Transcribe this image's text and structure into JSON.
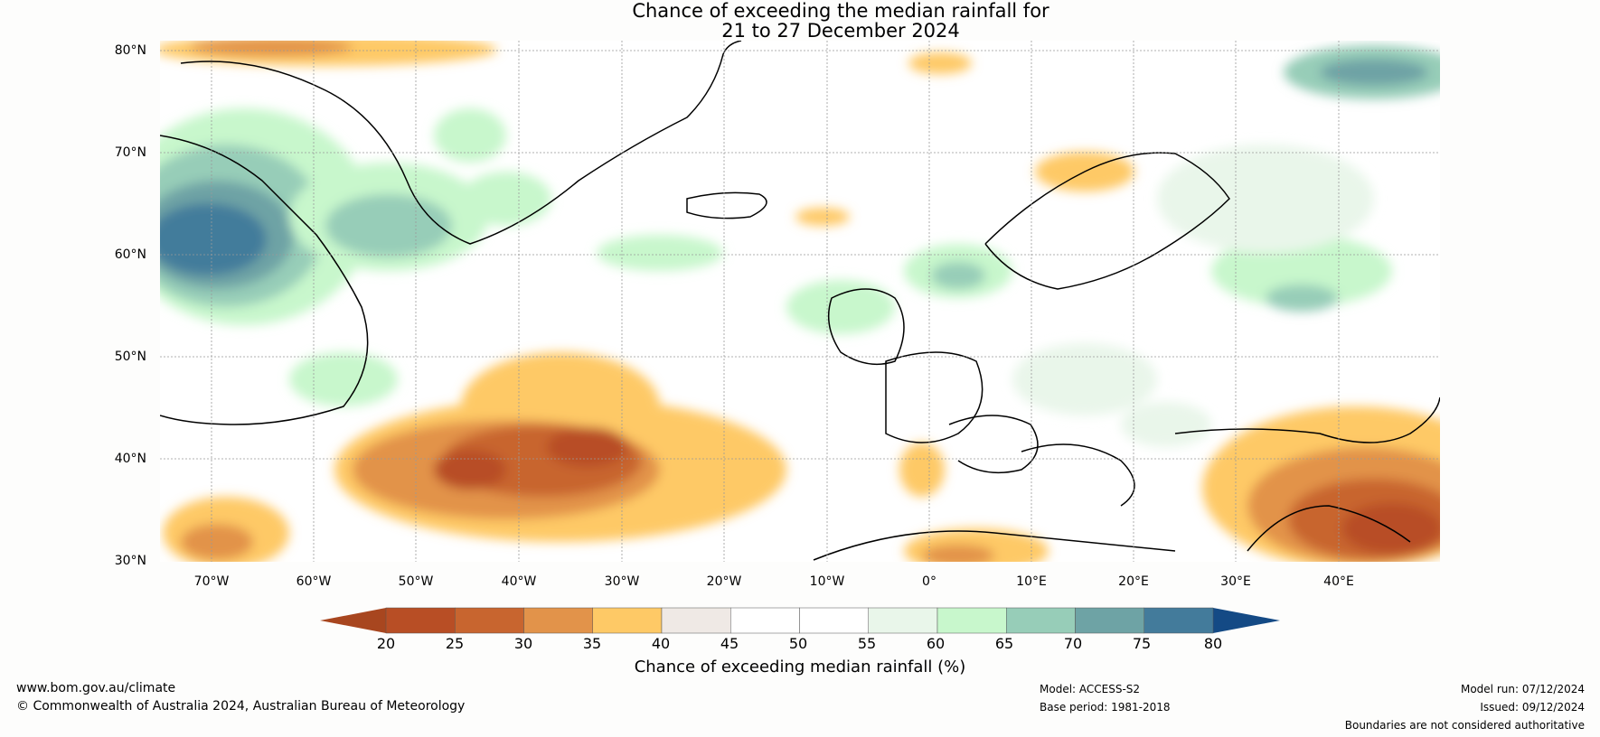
{
  "title_line1": "Chance of exceeding the median rainfall for",
  "title_line2": "21 to 27 December 2024",
  "lat_labels": [
    "80°N",
    "70°N",
    "60°N",
    "50°N",
    "40°N",
    "30°N"
  ],
  "lon_labels": [
    "70°W",
    "60°W",
    "50°W",
    "40°W",
    "30°W",
    "20°W",
    "10°W",
    "0°",
    "10°E",
    "20°E",
    "30°E",
    "40°E"
  ],
  "colorbar": {
    "ticks": [
      "20",
      "25",
      "30",
      "35",
      "40",
      "45",
      "50",
      "55",
      "60",
      "65",
      "70",
      "75",
      "80"
    ],
    "colors": [
      "#a8461f",
      "#b84e25",
      "#c8652f",
      "#e2934a",
      "#fec966",
      "#efe9e5",
      "#ffffff",
      "#ffffff",
      "#e9f6ea",
      "#c8f7cc",
      "#97cdb8",
      "#6ea3a5",
      "#437b9b",
      "#144a85"
    ],
    "label": "Chance of exceeding median rainfall (%)"
  },
  "footer": {
    "website": "www.bom.gov.au/climate",
    "copyright": "© Commonwealth of Australia 2024, Australian Bureau of Meteorology",
    "model": "Model: ACCESS-S2",
    "base_period": "Base period: 1981-2018",
    "model_run": "Model run: 07/12/2024",
    "issued": "Issued: 09/12/2024",
    "disclaimer": "Boundaries are not considered authoritative"
  }
}
